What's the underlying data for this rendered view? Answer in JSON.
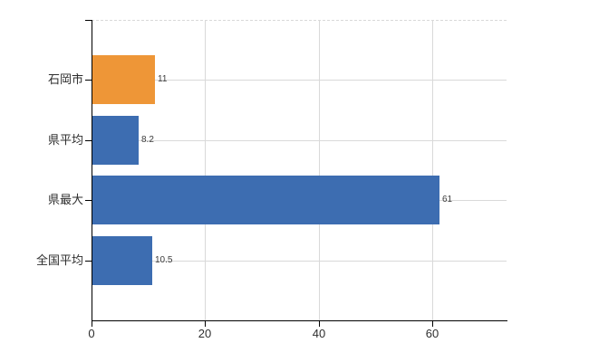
{
  "chart_data": {
    "type": "bar",
    "orientation": "horizontal",
    "title": "",
    "xlabel": "",
    "ylabel": "",
    "categories": [
      "石岡市",
      "県平均",
      "県最大",
      "全国平均"
    ],
    "values": [
      11,
      8.2,
      61,
      10.5
    ],
    "value_labels": [
      "11",
      "8.2",
      "61",
      "10.5"
    ],
    "bar_colors": [
      "#ee9637",
      "#3d6db1",
      "#3d6db1",
      "#3d6db1"
    ],
    "xlim": [
      0,
      73
    ],
    "xticks": [
      0,
      20,
      40,
      60
    ],
    "xtick_labels": [
      "0",
      "20",
      "40",
      "60"
    ],
    "grid": true,
    "legend": false,
    "colors": {
      "grid": "#d9d9d9",
      "axis": "#000000",
      "text": "#2e2e2e",
      "value_text": "#3c3c3c",
      "background": "#ffffff"
    }
  }
}
